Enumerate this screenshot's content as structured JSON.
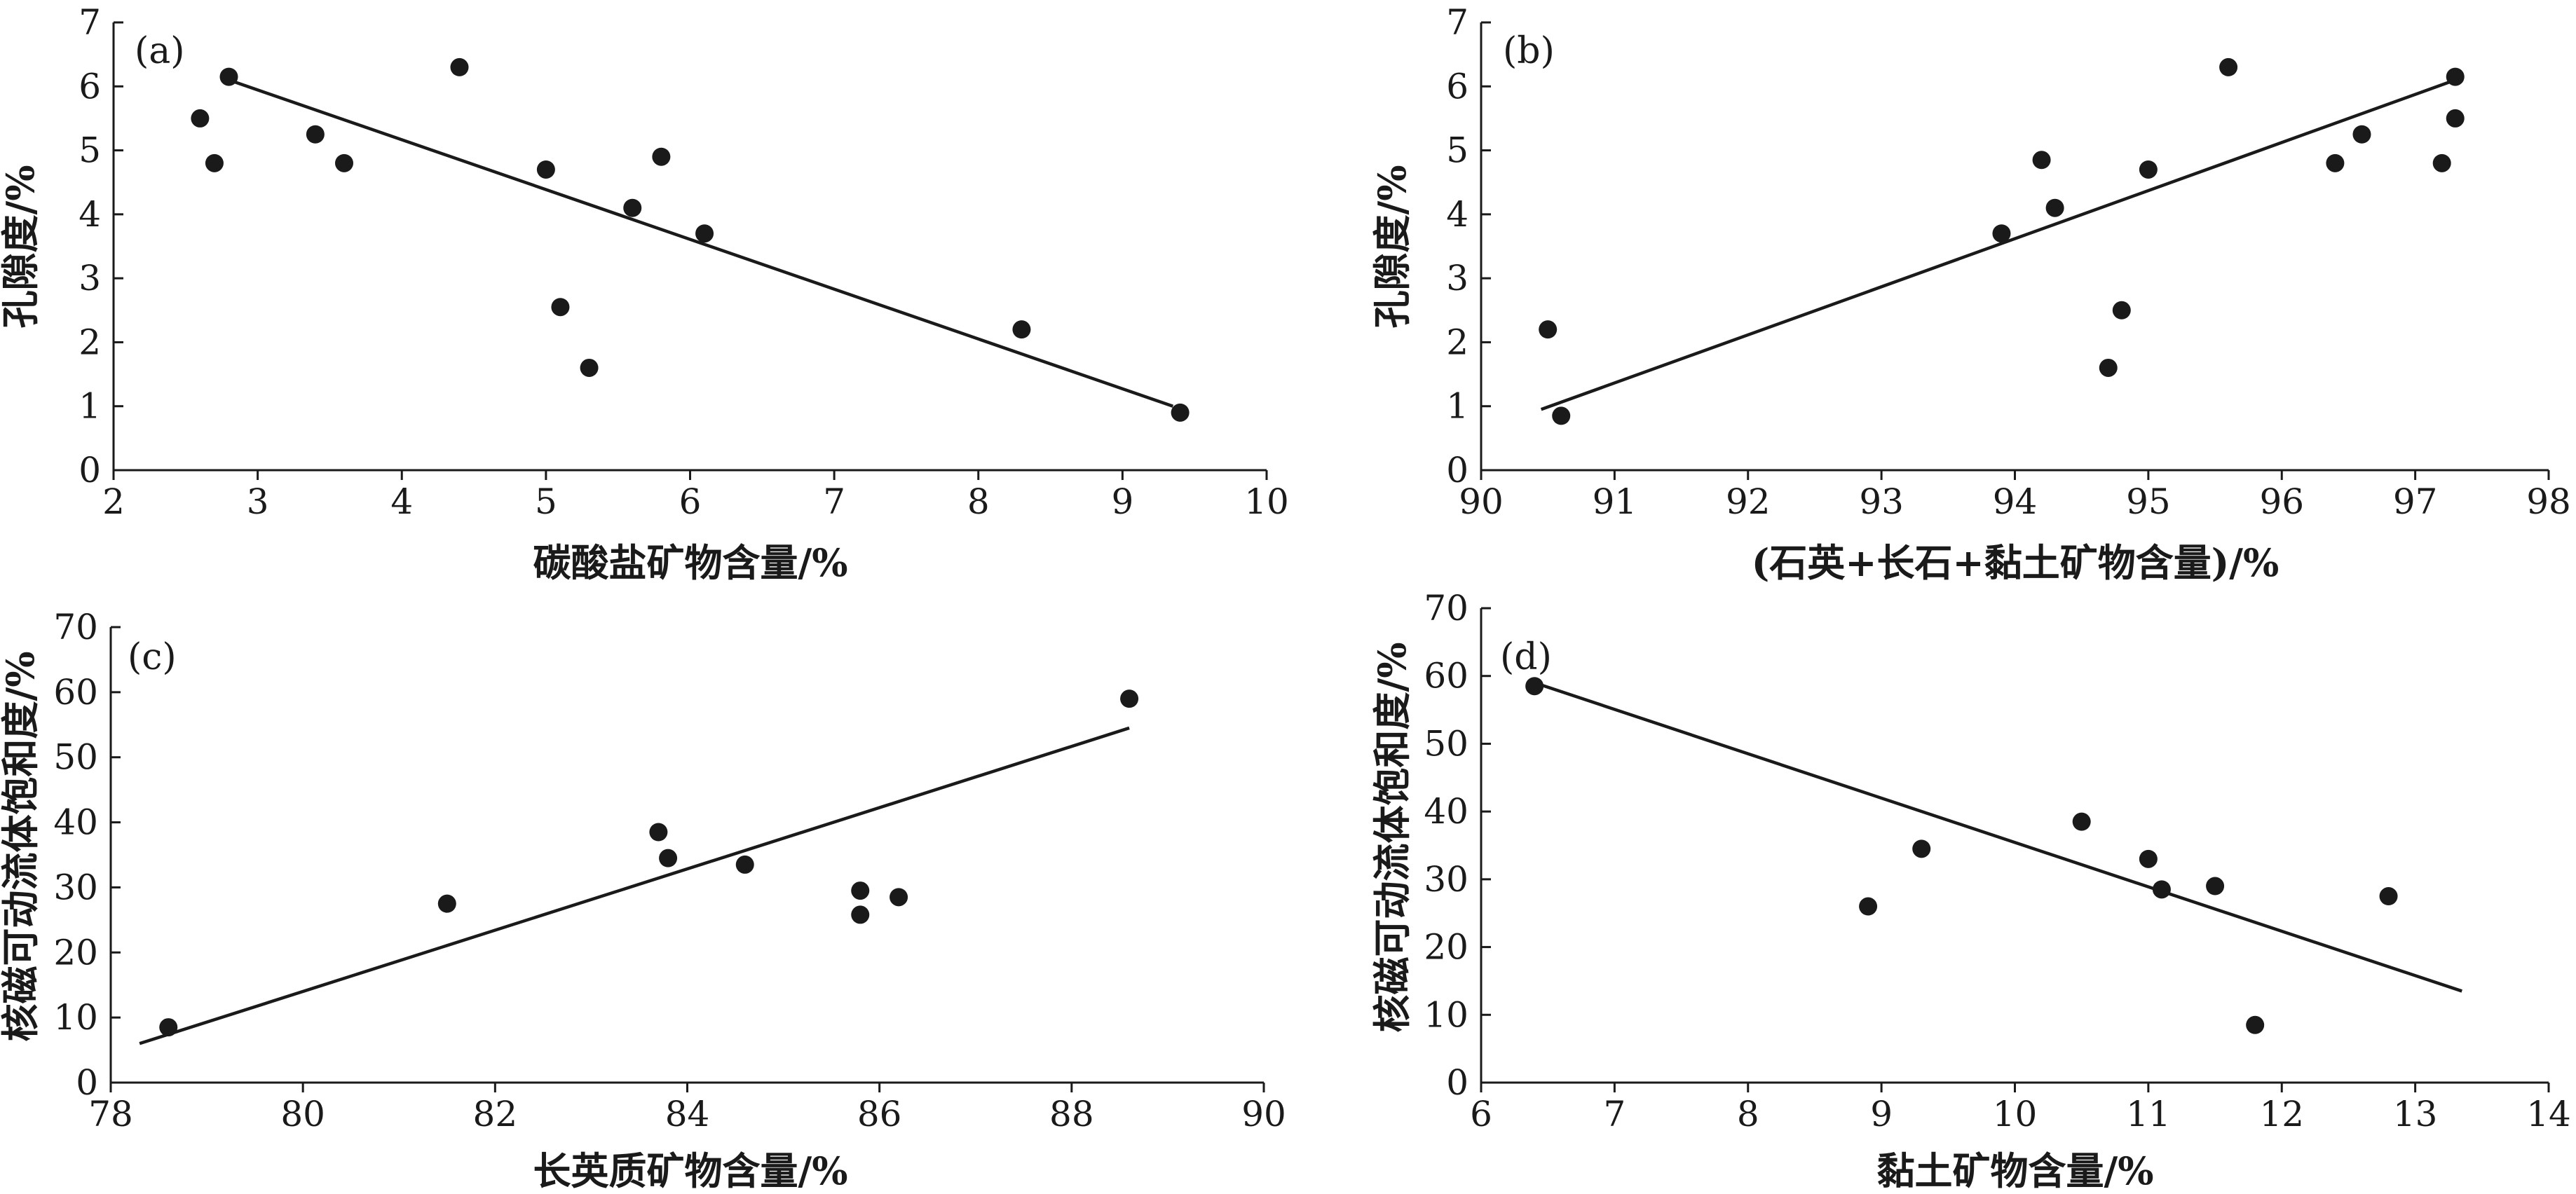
{
  "colors": {
    "ink": "#1a1a1a",
    "background": "#ffffff"
  },
  "chart_data": [
    {
      "type": "scatter",
      "panel_label": "(a)",
      "xlabel": "碳酸盐矿物含量/%",
      "ylabel": "孔隙度/%",
      "xlim": [
        2,
        10
      ],
      "ylim": [
        0,
        7
      ],
      "xticks": [
        2,
        3,
        4,
        5,
        6,
        7,
        8,
        9,
        10
      ],
      "yticks": [
        0,
        1,
        2,
        3,
        4,
        5,
        6,
        7
      ],
      "points": [
        [
          2.6,
          5.5
        ],
        [
          2.7,
          4.8
        ],
        [
          2.8,
          6.15
        ],
        [
          3.4,
          5.25
        ],
        [
          3.6,
          4.8
        ],
        [
          4.4,
          6.3
        ],
        [
          5.0,
          4.7
        ],
        [
          5.1,
          2.55
        ],
        [
          5.3,
          1.6
        ],
        [
          5.6,
          4.1
        ],
        [
          5.8,
          4.9
        ],
        [
          6.1,
          3.7
        ],
        [
          8.3,
          2.2
        ],
        [
          9.4,
          0.9
        ]
      ],
      "trendline": [
        [
          2.8,
          6.1
        ],
        [
          9.35,
          1.0
        ]
      ]
    },
    {
      "type": "scatter",
      "panel_label": "(b)",
      "xlabel": "(石英+长石+黏土矿物含量)/%",
      "ylabel": "孔隙度/%",
      "xlim": [
        90,
        98
      ],
      "ylim": [
        0,
        7
      ],
      "xticks": [
        90,
        91,
        92,
        93,
        94,
        95,
        96,
        97,
        98
      ],
      "yticks": [
        0,
        1,
        2,
        3,
        4,
        5,
        6,
        7
      ],
      "points": [
        [
          90.5,
          2.2
        ],
        [
          90.6,
          0.85
        ],
        [
          93.9,
          3.7
        ],
        [
          94.2,
          4.85
        ],
        [
          94.3,
          4.1
        ],
        [
          94.7,
          1.6
        ],
        [
          94.8,
          2.5
        ],
        [
          95.0,
          4.7
        ],
        [
          95.6,
          6.3
        ],
        [
          96.4,
          4.8
        ],
        [
          96.6,
          5.25
        ],
        [
          97.2,
          4.8
        ],
        [
          97.3,
          6.15
        ],
        [
          97.3,
          5.5
        ]
      ],
      "trendline": [
        [
          90.45,
          0.95
        ],
        [
          97.3,
          6.1
        ]
      ]
    },
    {
      "type": "scatter",
      "panel_label": "(c)",
      "xlabel": "长英质矿物含量/%",
      "ylabel": "核磁可动流体饱和度/%",
      "xlim": [
        78,
        90
      ],
      "ylim": [
        0,
        70
      ],
      "xticks": [
        78,
        80,
        82,
        84,
        86,
        88,
        90
      ],
      "yticks": [
        0,
        10,
        20,
        30,
        40,
        50,
        60,
        70
      ],
      "points": [
        [
          78.6,
          8.5
        ],
        [
          81.5,
          27.5
        ],
        [
          83.7,
          38.5
        ],
        [
          83.8,
          34.5
        ],
        [
          84.6,
          33.5
        ],
        [
          85.8,
          29.5
        ],
        [
          85.8,
          25.8
        ],
        [
          86.2,
          28.5
        ],
        [
          88.6,
          59.0
        ]
      ],
      "trendline": [
        [
          78.3,
          6.0
        ],
        [
          88.6,
          54.5
        ]
      ]
    },
    {
      "type": "scatter",
      "panel_label": "(d)",
      "xlabel": "黏土矿物含量/%",
      "ylabel": "核磁可动流体饱和度/%",
      "xlim": [
        6,
        14
      ],
      "ylim": [
        0,
        70
      ],
      "xticks": [
        6,
        7,
        8,
        9,
        10,
        11,
        12,
        13,
        14
      ],
      "yticks": [
        0,
        10,
        20,
        30,
        40,
        50,
        60,
        70
      ],
      "points": [
        [
          6.4,
          58.5
        ],
        [
          8.9,
          26.0
        ],
        [
          9.3,
          34.5
        ],
        [
          10.5,
          38.5
        ],
        [
          11.0,
          33.0
        ],
        [
          11.1,
          28.5
        ],
        [
          11.5,
          29.0
        ],
        [
          11.8,
          8.5
        ],
        [
          12.8,
          27.5
        ]
      ],
      "trendline": [
        [
          6.4,
          59.0
        ],
        [
          13.35,
          13.5
        ]
      ]
    }
  ]
}
